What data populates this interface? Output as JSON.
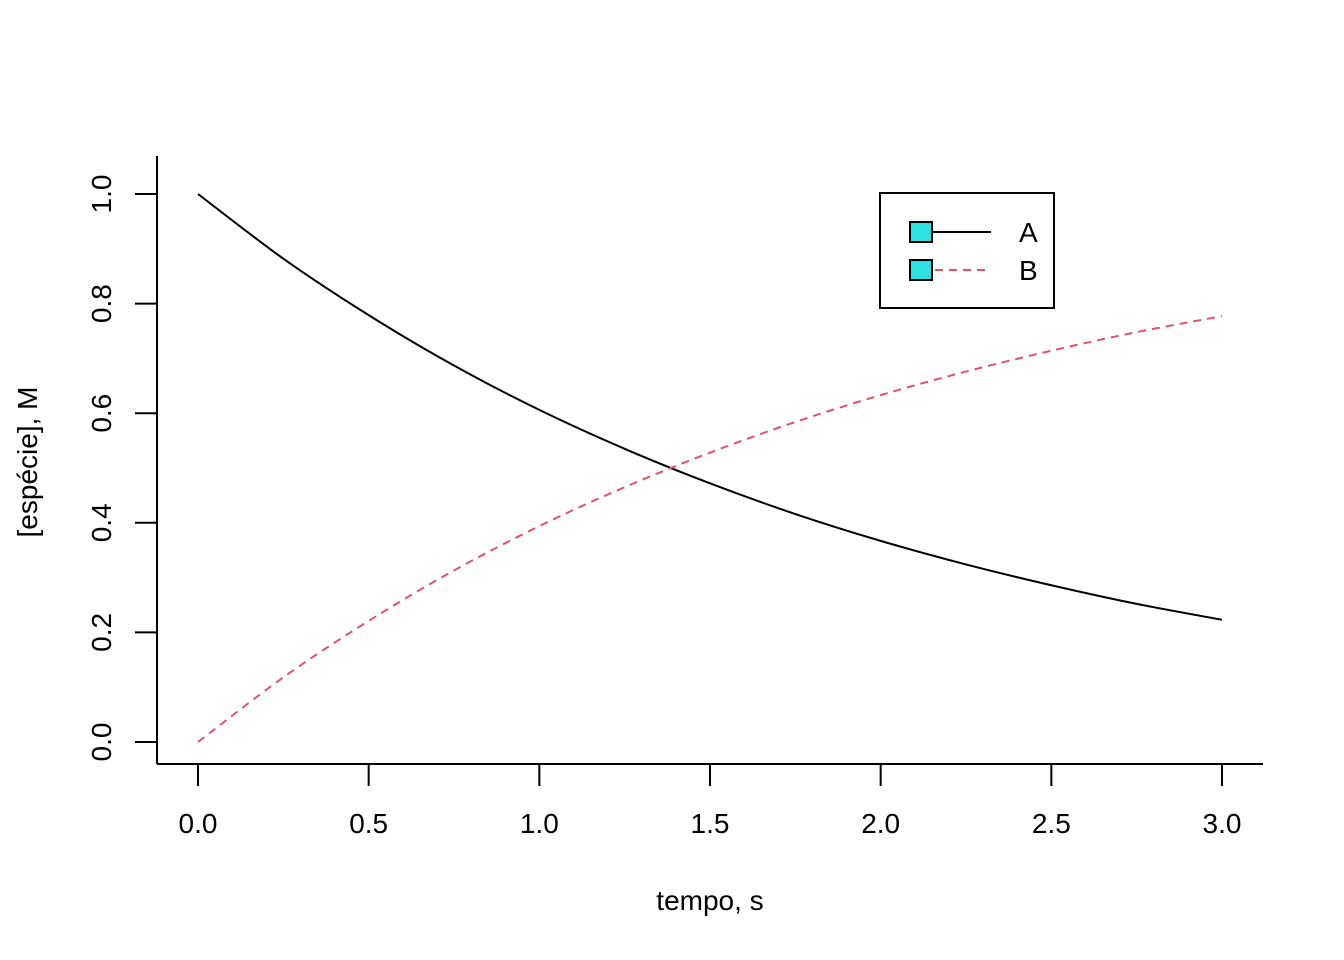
{
  "chart_data": {
    "type": "line",
    "title": "",
    "xlabel": "tempo, s",
    "ylabel": "[espécie], M",
    "xlim": [
      0,
      3
    ],
    "ylim": [
      0,
      1
    ],
    "xticks": [
      "0.0",
      "0.5",
      "1.0",
      "1.5",
      "2.0",
      "2.5",
      "3.0"
    ],
    "yticks": [
      "0.0",
      "0.2",
      "0.4",
      "0.6",
      "0.8",
      "1.0"
    ],
    "grid": false,
    "legend": {
      "position": "top-right",
      "box_fill_color": "#2ee0e0"
    },
    "x": [
      0,
      0.25,
      0.5,
      0.75,
      1.0,
      1.25,
      1.5,
      1.75,
      2.0,
      2.25,
      2.5,
      2.75,
      3.0
    ],
    "series": [
      {
        "name": "A",
        "color": "#000000",
        "dash": "solid",
        "values": [
          1.0,
          0.882,
          0.779,
          0.687,
          0.606,
          0.535,
          0.472,
          0.416,
          0.367,
          0.324,
          0.286,
          0.252,
          0.223
        ]
      },
      {
        "name": "B",
        "color": "#df536b",
        "dash": "dashed",
        "values": [
          0.0,
          0.118,
          0.221,
          0.313,
          0.394,
          0.465,
          0.528,
          0.584,
          0.633,
          0.676,
          0.714,
          0.748,
          0.777
        ]
      }
    ]
  }
}
